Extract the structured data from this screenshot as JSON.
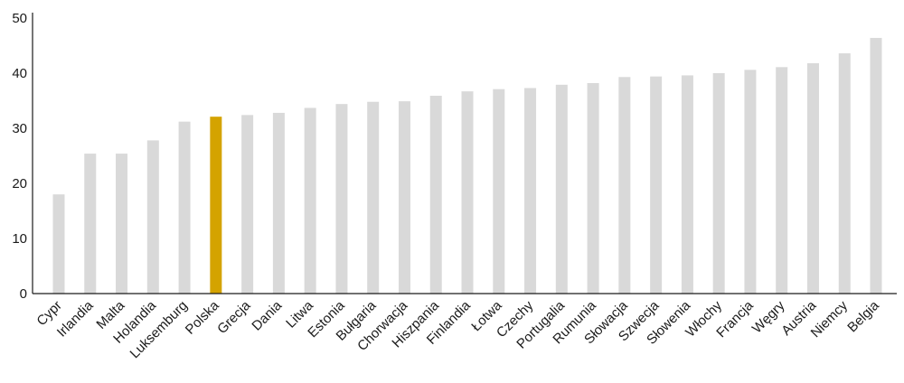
{
  "chart_data": {
    "type": "bar",
    "title": "",
    "xlabel": "",
    "ylabel": "",
    "ylim": [
      0,
      50
    ],
    "yticks": [
      0,
      10,
      20,
      30,
      40,
      50
    ],
    "grid": false,
    "categories": [
      "Cypr",
      "Irlandia",
      "Malta",
      "Holandia",
      "Luksemburg",
      "Polska",
      "Grecja",
      "Dania",
      "Litwa",
      "Estonia",
      "Bułgaria",
      "Chorwacja",
      "Hiszpania",
      "Finlandia",
      "Łotwa",
      "Czechy",
      "Portugalia",
      "Rumunia",
      "Słowacja",
      "Szwecja",
      "Słowenia",
      "Włochy",
      "Francja",
      "Węgry",
      "Austria",
      "Niemcy",
      "Belgia"
    ],
    "values": [
      18.0,
      25.4,
      25.4,
      27.8,
      31.2,
      32.1,
      32.4,
      32.8,
      33.7,
      34.4,
      34.8,
      34.9,
      35.9,
      36.7,
      37.1,
      37.3,
      37.9,
      38.2,
      39.3,
      39.4,
      39.6,
      40.0,
      40.6,
      41.1,
      41.8,
      43.6,
      46.4
    ],
    "highlight": "Polska",
    "colors": {
      "bar": "#d9d9d9",
      "highlight": "#d4a300",
      "axis": "#1a1a1a",
      "text": "#1a1a1a"
    }
  }
}
